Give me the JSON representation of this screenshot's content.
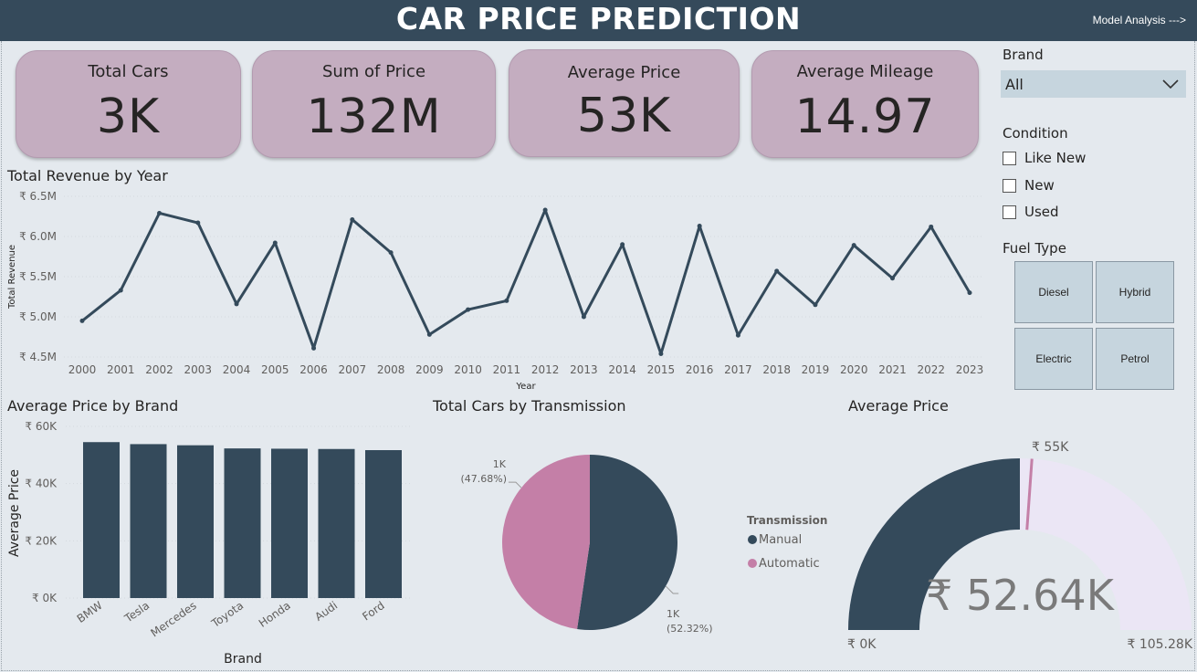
{
  "header": {
    "title": "CAR PRICE PREDICTION",
    "nav_link": "Model Analysis --->"
  },
  "kpis": [
    {
      "label": "Total Cars",
      "value": "3K"
    },
    {
      "label": "Sum of Price",
      "value": "132M"
    },
    {
      "label": "Average Price",
      "value": "53K"
    },
    {
      "label": "Average Mileage",
      "value": "14.97"
    }
  ],
  "filters": {
    "brand": {
      "title": "Brand",
      "selected": "All"
    },
    "condition": {
      "title": "Condition",
      "options": [
        "Like New",
        "New",
        "Used"
      ]
    },
    "fuel": {
      "title": "Fuel Type",
      "options": [
        "Diesel",
        "Hybrid",
        "Electric",
        "Petrol"
      ]
    }
  },
  "colors": {
    "header_bg": "#354a5b",
    "kpi_card": "#c4adc0",
    "series_dark": "#344a5b",
    "series_pink": "#c47fa7",
    "gauge_rest": "#ebe6f5",
    "page_bg": "#e4e9ee"
  },
  "chart_data": [
    {
      "type": "line",
      "title": "Total Revenue by Year",
      "xlabel": "Year",
      "ylabel": "Total Revenue",
      "x": [
        "2000",
        "2001",
        "2002",
        "2003",
        "2004",
        "2005",
        "2006",
        "2007",
        "2008",
        "2009",
        "2010",
        "2011",
        "2012",
        "2013",
        "2014",
        "2015",
        "2016",
        "2017",
        "2018",
        "2019",
        "2020",
        "2021",
        "2022",
        "2023"
      ],
      "values": [
        4.95,
        5.33,
        6.29,
        6.17,
        5.16,
        5.92,
        4.61,
        6.21,
        5.8,
        4.78,
        5.09,
        5.2,
        6.33,
        5.0,
        5.9,
        4.54,
        6.13,
        4.77,
        5.57,
        5.15,
        5.89,
        5.48,
        6.12,
        5.3
      ],
      "unit": "₹ M",
      "yticks": [
        "₹ 6.5M",
        "₹ 6.0M",
        "₹ 5.5M",
        "₹ 5.0M",
        "₹ 4.5M"
      ],
      "ytick_values": [
        6.5,
        6.0,
        5.5,
        5.0,
        4.5
      ],
      "ylim": [
        4.5,
        6.5
      ]
    },
    {
      "type": "bar",
      "title": "Average Price by Brand",
      "xlabel": "Brand",
      "ylabel": "Average Price",
      "categories": [
        "BMW",
        "Tesla",
        "Mercedes",
        "Toyota",
        "Honda",
        "Audi",
        "Ford"
      ],
      "values": [
        54.5,
        53.8,
        53.4,
        52.3,
        52.2,
        52.1,
        51.7
      ],
      "unit": "₹ K",
      "yticks": [
        "₹ 60K",
        "₹ 40K",
        "₹ 20K",
        "₹ 0K"
      ],
      "ytick_values": [
        60,
        40,
        20,
        0
      ],
      "ylim": [
        0,
        60
      ]
    },
    {
      "type": "pie",
      "title": "Total Cars by Transmission",
      "legend_title": "Transmission",
      "slices": [
        {
          "name": "Manual",
          "share": 52.32,
          "label": "1K",
          "pct_label": "(52.32%)"
        },
        {
          "name": "Automatic",
          "share": 47.68,
          "label": "1K",
          "pct_label": "(47.68%)"
        }
      ]
    },
    {
      "type": "gauge",
      "title": "Average Price",
      "value": 52.64,
      "target": 55,
      "min": 0,
      "max": 105.28,
      "value_label": "₹ 52.64K",
      "target_label": "₹ 55K",
      "min_label": "₹ 0K",
      "max_label": "₹ 105.28K"
    }
  ]
}
